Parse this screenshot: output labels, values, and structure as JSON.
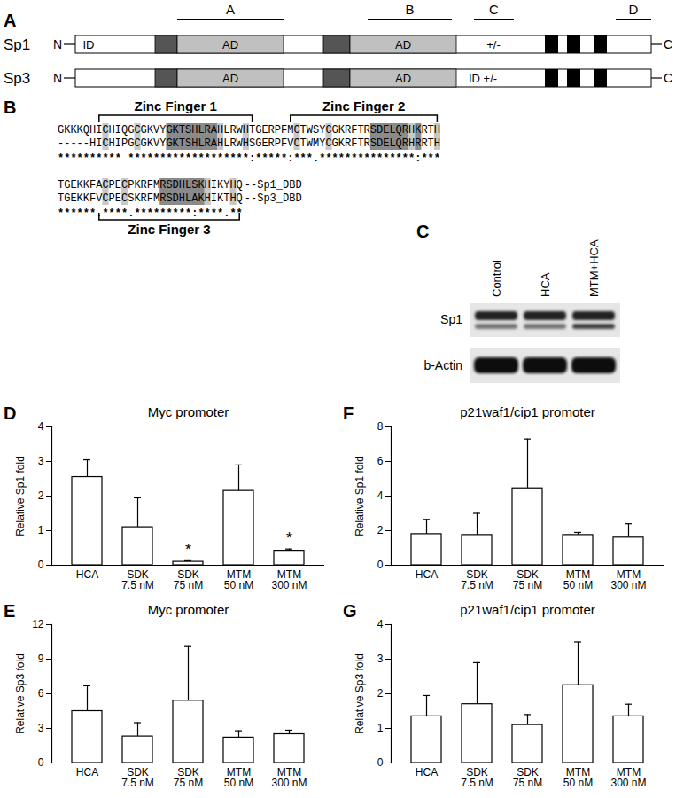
{
  "panels": {
    "domain_diagram": {
      "panel": "A",
      "region_labels": [
        "A",
        "B",
        "C",
        "D"
      ],
      "proteins": [
        {
          "name": "Sp1",
          "n_label": "N",
          "c_label": "C",
          "box_labels": [
            "ID",
            "AD",
            "AD",
            "+/-"
          ]
        },
        {
          "name": "Sp3",
          "n_label": "N",
          "c_label": "C",
          "box_labels": [
            "AD",
            "AD",
            "ID +/-"
          ]
        }
      ]
    },
    "alignment": {
      "panel": "B",
      "domain_labels": [
        "Zinc Finger 1",
        "Zinc Finger 2",
        "Zinc Finger 3"
      ],
      "blocks": [
        {
          "rows": [
            {
              "sequence": "GKKKQHICHIQGCGKVYGKTSHLRAHLRWHTGERPFMCTWSYCGKRFTRSDELQRHKRTH"
            },
            {
              "sequence": "-----HICHIPGCGKVYGKTSHLRAHLRWHSGERPFVCTWMYCGKRFTRSDELQRHRRTH"
            }
          ],
          "conservation": "********** *******************:*****:***.***************:***"
        },
        {
          "rows": [
            {
              "sequence": "TGEKKFACPECPKRFMRSDHLSKHIKYHQ",
              "name": "--Sp1_DBD"
            },
            {
              "sequence": "TGEKKFVCPECSKRFMRSDHLAKHIKTHQ",
              "name": "--Sp3_DBD"
            }
          ],
          "conservation": "******.****.*********:****.**"
        }
      ]
    },
    "western_blot": {
      "panel": "C",
      "lanes": [
        "Control",
        "HCA",
        "MTM+HCA"
      ],
      "rows": [
        "Sp1",
        "b-Actin"
      ]
    }
  },
  "chart_data": [
    {
      "type": "bar",
      "panel": "D",
      "title": "Myc promoter",
      "y_label": "Relative Sp1 fold",
      "categories": [
        "HCA",
        "SDK\n7.5 nM",
        "SDK\n75 nM",
        "MTM\n50 nM",
        "MTM\n300 nM"
      ],
      "values": [
        2.55,
        1.1,
        0.1,
        2.15,
        0.42
      ],
      "errors": [
        0.5,
        0.85,
        0.03,
        0.75,
        0.05
      ],
      "annotations": [
        {
          "category": "SDK\n75 nM",
          "text": "*"
        },
        {
          "category": "MTM\n300 nM",
          "text": "*"
        }
      ],
      "color": "#ffffff",
      "ylim": [
        0,
        4
      ],
      "yticks": [
        0,
        1,
        2,
        3,
        4
      ]
    },
    {
      "type": "bar",
      "panel": "E",
      "title": "Myc promoter",
      "y_label": "Relative Sp3 fold",
      "categories": [
        "HCA",
        "SDK\n7.5 nM",
        "SDK\n75 nM",
        "MTM\n50 nM",
        "MTM\n300 nM"
      ],
      "values": [
        4.5,
        2.3,
        5.4,
        2.2,
        2.5
      ],
      "errors": [
        2.2,
        1.2,
        4.7,
        0.6,
        0.35
      ],
      "color": "#ffffff",
      "ylim": [
        0,
        12
      ],
      "yticks": [
        0,
        3,
        6,
        9,
        12
      ]
    },
    {
      "type": "bar",
      "panel": "F",
      "title": "p21waf1/cip1 promoter",
      "y_label": "Relative Sp1 fold",
      "categories": [
        "HCA",
        "SDK\n7.5 nM",
        "SDK\n75 nM",
        "MTM\n50 nM",
        "MTM\n300 nM"
      ],
      "values": [
        1.8,
        1.75,
        4.45,
        1.75,
        1.6
      ],
      "errors": [
        0.85,
        1.25,
        2.85,
        0.15,
        0.8
      ],
      "color": "#ffffff",
      "ylim": [
        0,
        8
      ],
      "yticks": [
        0,
        2,
        4,
        6,
        8
      ]
    },
    {
      "type": "bar",
      "panel": "G",
      "title": "p21waf1/cip1 promoter",
      "y_label": "Relative Sp3 fold",
      "categories": [
        "HCA",
        "SDK\n7.5 nM",
        "SDK\n75 nM",
        "MTM\n50 nM",
        "MTM\n300 nM"
      ],
      "values": [
        1.35,
        1.7,
        1.1,
        2.25,
        1.35
      ],
      "errors": [
        0.6,
        1.2,
        0.3,
        1.25,
        0.35
      ],
      "color": "#ffffff",
      "ylim": [
        0,
        4
      ],
      "yticks": [
        0,
        1,
        2,
        3,
        4
      ]
    }
  ]
}
